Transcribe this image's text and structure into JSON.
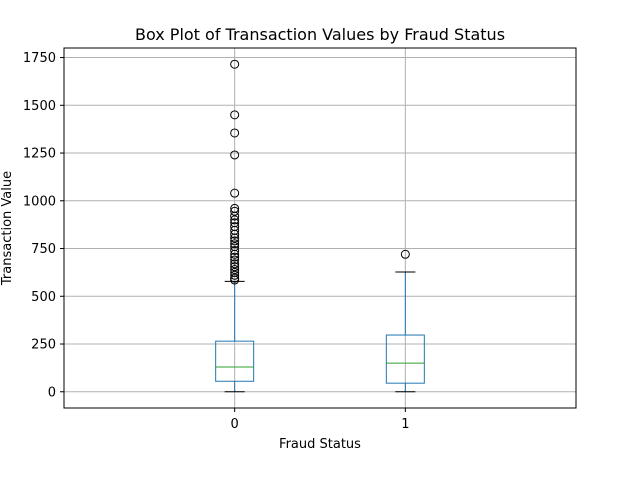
{
  "chart_data": {
    "type": "box",
    "title": "Box Plot of Transaction Values by Fraud Status",
    "xlabel": "Fraud Status",
    "ylabel": "Transaction Value",
    "ylim": [
      -85,
      1800
    ],
    "yticks": [
      0,
      250,
      500,
      750,
      1000,
      1250,
      1500,
      1750
    ],
    "grid": true,
    "categories": [
      "0",
      "1"
    ],
    "boxes": [
      {
        "category": "0",
        "whisker_low": 0,
        "q1": 55,
        "median": 130,
        "q3": 265,
        "whisker_high": 578,
        "outliers": [
          585,
          595,
          610,
          625,
          640,
          655,
          670,
          690,
          705,
          720,
          740,
          760,
          775,
          790,
          805,
          825,
          845,
          865,
          885,
          900,
          920,
          945,
          960,
          1040,
          1240,
          1355,
          1450,
          1715
        ]
      },
      {
        "category": "1",
        "whisker_low": 0,
        "q1": 45,
        "median": 150,
        "q3": 297,
        "whisker_high": 627,
        "outliers": [
          720
        ]
      }
    ],
    "colors": {
      "box": "#1f77b4",
      "median": "#2ca02c",
      "whisker": "#1f77b4",
      "cap": "#000000",
      "outlier_edge": "#000000",
      "grid": "#b0b0b0"
    }
  }
}
